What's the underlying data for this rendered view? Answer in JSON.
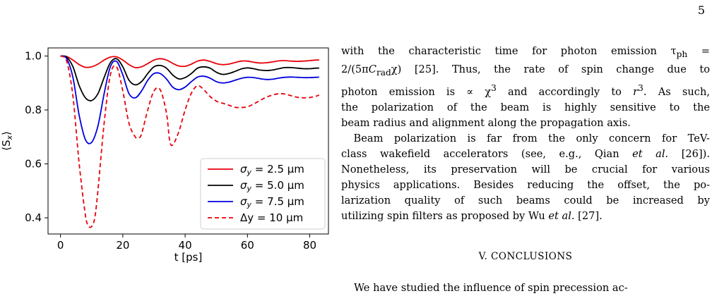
{
  "page": {
    "number": "5"
  },
  "chart_data": {
    "type": "line",
    "title": "",
    "xlabel": "t [ps]",
    "ylabel": "⟨S",
    "ylabel_sub": "x",
    "ylabel_end": "⟩",
    "xlim": [
      -4,
      86
    ],
    "ylim": [
      0.34,
      1.03
    ],
    "xticks": [
      0,
      20,
      40,
      60,
      80
    ],
    "yticks": [
      0.4,
      0.6,
      0.8,
      1.0
    ],
    "xtick_labels": [
      "0",
      "20",
      "40",
      "60",
      "80"
    ],
    "ytick_labels": [
      "0.4",
      "0.6",
      "0.8",
      "1.0"
    ],
    "legend_position": "lower-right",
    "grid": false,
    "series": [
      {
        "name": "σ_y = 2.5 μm",
        "legend_parts": [
          "σ",
          "y",
          " = 2.5 μm"
        ],
        "color": "#e8000b",
        "dash": "solid",
        "x": [
          0,
          2,
          4,
          6,
          8,
          10,
          12,
          14,
          16,
          18,
          20,
          22,
          24,
          26,
          28,
          30,
          32,
          34,
          36,
          38,
          40,
          42,
          44,
          46,
          48,
          50,
          52,
          54,
          56,
          58,
          60,
          62,
          64,
          66,
          68,
          70,
          72,
          74,
          76,
          78,
          80,
          82,
          83
        ],
        "y": [
          1.0,
          0.998,
          0.985,
          0.968,
          0.958,
          0.96,
          0.97,
          0.985,
          0.996,
          0.997,
          0.985,
          0.968,
          0.957,
          0.96,
          0.972,
          0.985,
          0.99,
          0.985,
          0.973,
          0.963,
          0.962,
          0.97,
          0.981,
          0.985,
          0.98,
          0.972,
          0.968,
          0.97,
          0.976,
          0.981,
          0.981,
          0.977,
          0.974,
          0.975,
          0.978,
          0.982,
          0.983,
          0.981,
          0.98,
          0.981,
          0.983,
          0.985,
          0.985
        ]
      },
      {
        "name": "σ_y = 5.0 μm",
        "legend_parts": [
          "σ",
          "y",
          " = 5.0 μm"
        ],
        "color": "#000000",
        "dash": "solid",
        "x": [
          0,
          2,
          4,
          6,
          8,
          10,
          12,
          14,
          16,
          18,
          20,
          22,
          24,
          26,
          28,
          30,
          32,
          34,
          36,
          38,
          40,
          42,
          44,
          46,
          48,
          50,
          52,
          54,
          56,
          58,
          60,
          62,
          64,
          66,
          68,
          70,
          72,
          74,
          76,
          78,
          80,
          82,
          83
        ],
        "y": [
          1.0,
          0.996,
          0.96,
          0.89,
          0.845,
          0.835,
          0.86,
          0.92,
          0.975,
          0.99,
          0.96,
          0.91,
          0.893,
          0.905,
          0.935,
          0.96,
          0.965,
          0.955,
          0.93,
          0.915,
          0.92,
          0.935,
          0.955,
          0.96,
          0.955,
          0.94,
          0.932,
          0.935,
          0.943,
          0.952,
          0.956,
          0.953,
          0.948,
          0.946,
          0.948,
          0.953,
          0.957,
          0.957,
          0.955,
          0.953,
          0.953,
          0.955,
          0.955
        ]
      },
      {
        "name": "σ_y = 7.5 μm",
        "legend_parts": [
          "σ",
          "y",
          " = 7.5 μm"
        ],
        "color": "#0000e0",
        "dash": "solid",
        "x": [
          0,
          2,
          4,
          6,
          8,
          10,
          12,
          14,
          16,
          18,
          20,
          22,
          24,
          26,
          28,
          30,
          32,
          34,
          36,
          38,
          40,
          42,
          44,
          46,
          48,
          50,
          52,
          54,
          56,
          58,
          60,
          62,
          64,
          66,
          68,
          70,
          72,
          74,
          76,
          78,
          80,
          82,
          83
        ],
        "y": [
          1.0,
          0.99,
          0.92,
          0.78,
          0.69,
          0.68,
          0.74,
          0.86,
          0.96,
          0.98,
          0.93,
          0.86,
          0.845,
          0.87,
          0.91,
          0.935,
          0.935,
          0.915,
          0.885,
          0.875,
          0.885,
          0.905,
          0.922,
          0.925,
          0.918,
          0.905,
          0.9,
          0.903,
          0.91,
          0.917,
          0.921,
          0.92,
          0.916,
          0.913,
          0.914,
          0.918,
          0.921,
          0.922,
          0.921,
          0.92,
          0.92,
          0.921,
          0.922
        ]
      },
      {
        "name": "Δy = 10 μm",
        "legend_parts": [
          "Δ",
          "",
          "y = 10 μm"
        ],
        "color": "#e8000b",
        "dash": "dashed",
        "x": [
          0,
          2,
          4,
          6,
          8,
          9,
          10,
          11,
          12,
          14,
          16,
          18,
          20,
          22,
          24,
          25,
          26,
          28,
          30,
          32,
          34,
          35,
          36,
          38,
          40,
          42,
          44,
          46,
          48,
          50,
          52,
          54,
          56,
          58,
          60,
          62,
          64,
          66,
          68,
          70,
          72,
          74,
          76,
          78,
          80,
          82,
          83
        ],
        "y": [
          1.0,
          0.98,
          0.85,
          0.6,
          0.41,
          0.37,
          0.368,
          0.4,
          0.5,
          0.75,
          0.93,
          0.96,
          0.87,
          0.75,
          0.7,
          0.698,
          0.71,
          0.8,
          0.87,
          0.875,
          0.79,
          0.69,
          0.67,
          0.72,
          0.8,
          0.862,
          0.89,
          0.875,
          0.85,
          0.833,
          0.825,
          0.818,
          0.81,
          0.809,
          0.812,
          0.822,
          0.835,
          0.847,
          0.855,
          0.86,
          0.859,
          0.853,
          0.847,
          0.845,
          0.846,
          0.851,
          0.855
        ]
      }
    ]
  },
  "text": {
    "para1": [
      [
        "with the characteristic time for photon emission τ",
        "ph",
        " ="
      ],
      [
        "2/(5π",
        "C",
        "rad",
        "χ) [25]. Thus, the rate of spin change due to"
      ],
      [
        "photon emission is ∝ χ",
        "3",
        " and accordingly to ",
        "r",
        "3",
        ". As such,"
      ],
      "the polarization of the beam is highly sensitive to the",
      "beam radius and alignment along the propagation axis."
    ],
    "para2": [
      "Beam polarization is far from the only concern for TeV-",
      [
        "class wakefield accelerators (see, e.g., Qian ",
        "et al.",
        " [26])."
      ],
      "Nonetheless, its preservation will be crucial for various",
      "physics applications. Besides reducing the offset, the po-",
      "larization quality of such beams could be increased by",
      [
        "utilizing spin filters as proposed by Wu ",
        "et al.",
        " [27]."
      ]
    ],
    "section_heading": "V.    CONCLUSIONS",
    "conclusion_start": "We have studied the influence of spin precession ac-"
  }
}
